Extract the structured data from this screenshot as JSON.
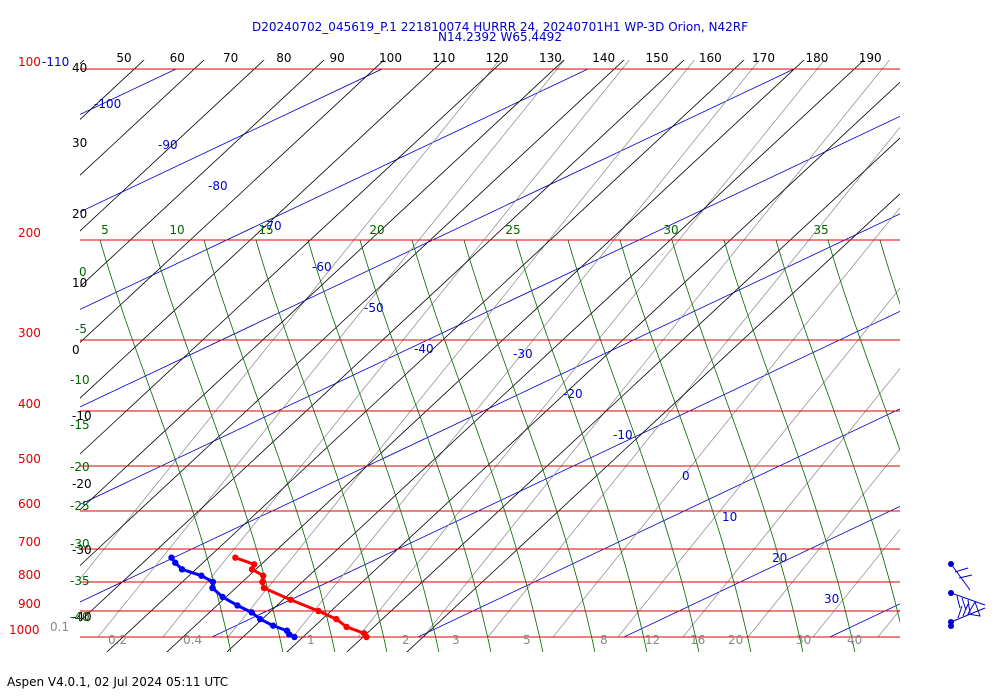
{
  "header": {
    "title_line1": "D20240702_045619_P.1 221810074 HURRR 24, 20240701H1 WP-3D Orion, N42RF",
    "title_line2": "N14.2392 W65.4492"
  },
  "footer": {
    "version_text": "Aspen V4.0.1, 02 Jul 2024  05:11 UTC"
  },
  "chart_data": {
    "type": "skew-t log-p",
    "pressure_levels": [
      100,
      200,
      300,
      400,
      500,
      600,
      700,
      800,
      900,
      1000
    ],
    "pressure_range_hPa": [
      100,
      1000
    ],
    "pressure_top_extra_label": "-110",
    "theta_top_labels": [
      50,
      60,
      70,
      80,
      90,
      100,
      110,
      120,
      130,
      140,
      150,
      160,
      170,
      180,
      190
    ],
    "left_black_labels": [
      40,
      30,
      20,
      10,
      0,
      -10,
      -20,
      -30,
      -40
    ],
    "mixing_ratio_bottom_labels": [
      "0.1",
      "0.2",
      "0.4",
      "1",
      "2",
      "3",
      "5",
      "8",
      "12",
      "16",
      "20",
      "30",
      "40"
    ],
    "thetae_top_labels": [
      "5",
      "10",
      "15",
      "20",
      "25",
      "30",
      "35"
    ],
    "thetae_left_labels": [
      "0",
      "-5",
      "-10",
      "-15",
      "-20",
      "-25",
      "-30",
      "-35",
      "-40"
    ],
    "isotherm_labels": [
      "-100",
      "-90",
      "-80",
      "-70",
      "-60",
      "-50",
      "-40",
      "-30",
      "-20",
      "-10",
      "0",
      "10",
      "20",
      "30"
    ],
    "temperature_profile": [
      {
        "p": 1000,
        "t": 27.5
      },
      {
        "p": 985,
        "t": 27.0
      },
      {
        "p": 960,
        "t": 25.5
      },
      {
        "p": 930,
        "t": 24.2
      },
      {
        "p": 900,
        "t": 22.5
      },
      {
        "p": 860,
        "t": 20.0
      },
      {
        "p": 820,
        "t": 17.5
      },
      {
        "p": 800,
        "t": 16.8
      },
      {
        "p": 780,
        "t": 16.2
      },
      {
        "p": 760,
        "t": 15.0
      },
      {
        "p": 745,
        "t": 14.6
      },
      {
        "p": 725,
        "t": 13.0
      }
    ],
    "dewpoint_profile": [
      {
        "p": 1000,
        "t": 24.0
      },
      {
        "p": 990,
        "t": 23.5
      },
      {
        "p": 975,
        "t": 23.0
      },
      {
        "p": 955,
        "t": 21.8
      },
      {
        "p": 930,
        "t": 20.5
      },
      {
        "p": 905,
        "t": 19.4
      },
      {
        "p": 880,
        "t": 18.0
      },
      {
        "p": 850,
        "t": 16.4
      },
      {
        "p": 820,
        "t": 15.0
      },
      {
        "p": 800,
        "t": 14.4
      },
      {
        "p": 780,
        "t": 13.2
      },
      {
        "p": 760,
        "t": 11.6
      },
      {
        "p": 740,
        "t": 10.6
      },
      {
        "p": 725,
        "t": 9.9
      }
    ],
    "colors": {
      "isobar": "#dd0000",
      "isotherm": "#0000cc",
      "dry_adiabat": "#000000",
      "moist_adiabat": "#006600",
      "mixing_ratio": "#888888",
      "temperature": "#ff0000",
      "dewpoint": "#0000ff",
      "wind_barbs": "#0000cc"
    }
  }
}
